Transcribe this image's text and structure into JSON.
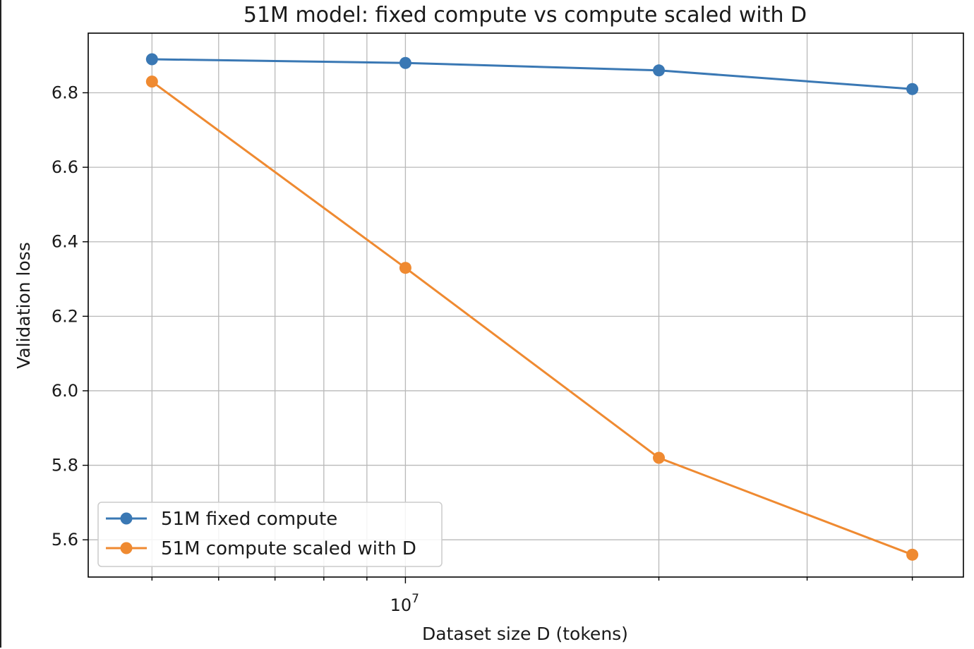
{
  "chart_data": {
    "type": "line",
    "title": "51M model: fixed compute vs compute scaled with D",
    "xlabel": "Dataset size D (tokens)",
    "ylabel": "Validation loss",
    "xscale": "log",
    "x": [
      5000000,
      10000000,
      20000000,
      40000000
    ],
    "xlim": [
      4200000,
      46000000
    ],
    "ylim": [
      5.5,
      6.96
    ],
    "yticks": [
      "5.6",
      "5.8",
      "6.0",
      "6.2",
      "6.4",
      "6.6",
      "6.8"
    ],
    "xtick_label": {
      "base": "10",
      "exp": "7"
    },
    "grid": true,
    "legend_position": "lower-left",
    "series": [
      {
        "name": "51M fixed compute",
        "color": "#3a78b4",
        "values": [
          6.89,
          6.88,
          6.86,
          6.81
        ]
      },
      {
        "name": "51M compute scaled with D",
        "color": "#ef8a31",
        "values": [
          6.83,
          6.33,
          5.82,
          5.56
        ]
      }
    ]
  }
}
